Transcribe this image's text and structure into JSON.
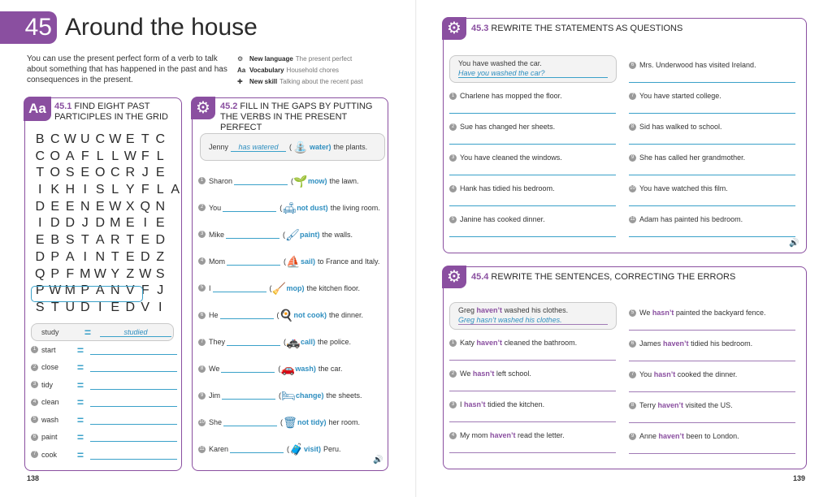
{
  "unit": {
    "number": "45",
    "title": "Around the house"
  },
  "intro": "You can use the present perfect form of a verb to talk about something that has happened in the past and has consequences in the present.",
  "meta": [
    {
      "icon": "gear-icon",
      "label": "New language",
      "value": "The present perfect"
    },
    {
      "icon": "aa-icon",
      "label": "Vocabulary",
      "value": "Household chores"
    },
    {
      "icon": "puzzle-icon",
      "label": "New skill",
      "value": "Talking about the recent past"
    }
  ],
  "ex451": {
    "number": "45.1",
    "title": "Find eight past participles in the grid",
    "grid": [
      "BCWUCWETC",
      "COAFLLWFL",
      "TOSEOCRJE",
      "IKHISLYFLA",
      "DEENEWXQN",
      "IDDJDMEIE",
      "EBSTARTED",
      "DPAINTEDZ",
      "QPFMWYZWS",
      "PWMPANVFJ",
      "STUDIEDVI"
    ],
    "example": {
      "word": "study",
      "answer": "studied"
    },
    "items": [
      "start",
      "close",
      "tidy",
      "clean",
      "wash",
      "paint",
      "cook"
    ]
  },
  "ex452": {
    "number": "45.2",
    "title": "Fill in the gaps by putting the verbs in the present perfect",
    "example": {
      "pre": "Jenny",
      "answer": "has watered",
      "verb": "water)",
      "post": "the plants."
    },
    "items": [
      {
        "pre": "Sharon",
        "verb": "mow)",
        "post": "the lawn."
      },
      {
        "pre": "You",
        "verb": "not dust)",
        "post": "the living room."
      },
      {
        "pre": "Mike",
        "verb": "paint)",
        "post": "the walls."
      },
      {
        "pre": "Mom",
        "verb": "sail)",
        "post": "to France and Italy."
      },
      {
        "pre": "I",
        "verb": "mop)",
        "post": "the kitchen floor."
      },
      {
        "pre": "He",
        "verb": "not cook)",
        "post": "the dinner."
      },
      {
        "pre": "They",
        "verb": "call)",
        "post": "the police."
      },
      {
        "pre": "We",
        "verb": "wash)",
        "post": "the car."
      },
      {
        "pre": "Jim",
        "verb": "change)",
        "post": "the sheets."
      },
      {
        "pre": "She",
        "verb": "not tidy)",
        "post": "her room."
      },
      {
        "pre": "Karen",
        "verb": "visit)",
        "post": "Peru."
      }
    ]
  },
  "ex453": {
    "number": "45.3",
    "title": "Rewrite the statements as questions",
    "example": {
      "statement": "You have washed the car.",
      "answer": "Have you washed the car?"
    },
    "left": [
      "Charlene has mopped the floor.",
      "Sue has changed her sheets.",
      "You have cleaned the windows.",
      "Hank has tidied his bedroom.",
      "Janine has cooked dinner."
    ],
    "right": [
      "Mrs. Underwood has visited Ireland.",
      "You have started college.",
      "Sid has walked to school.",
      "She has called her grandmother.",
      "You have watched this film.",
      "Adam has painted his bedroom."
    ]
  },
  "ex454": {
    "number": "45.4",
    "title": "Rewrite the sentences, correcting the errors",
    "example": {
      "pre": "Greg",
      "hl": "haven’t",
      "post": "washed his clothes.",
      "answer": "Greg hasn’t washed his clothes."
    },
    "left": [
      {
        "pre": "Katy",
        "hl": "haven’t",
        "post": "cleaned the bathroom."
      },
      {
        "pre": "We",
        "hl": "hasn’t",
        "post": "left school."
      },
      {
        "pre": "I",
        "hl": "hasn’t",
        "post": "tidied the kitchen."
      },
      {
        "pre": "My mom",
        "hl": "haven’t",
        "post": "read the letter."
      }
    ],
    "right": [
      {
        "pre": "We",
        "hl": "hasn’t",
        "post": "painted the backyard fence."
      },
      {
        "pre": "James",
        "hl": "haven’t",
        "post": "tidied his bedroom."
      },
      {
        "pre": "You",
        "hl": "hasn’t",
        "post": "cooked the dinner."
      },
      {
        "pre": "Terry",
        "hl": "haven’t",
        "post": "visited the US."
      },
      {
        "pre": "Anne",
        "hl": "haven’t",
        "post": "been to London."
      }
    ]
  },
  "pages": {
    "left": "138",
    "right": "139"
  }
}
